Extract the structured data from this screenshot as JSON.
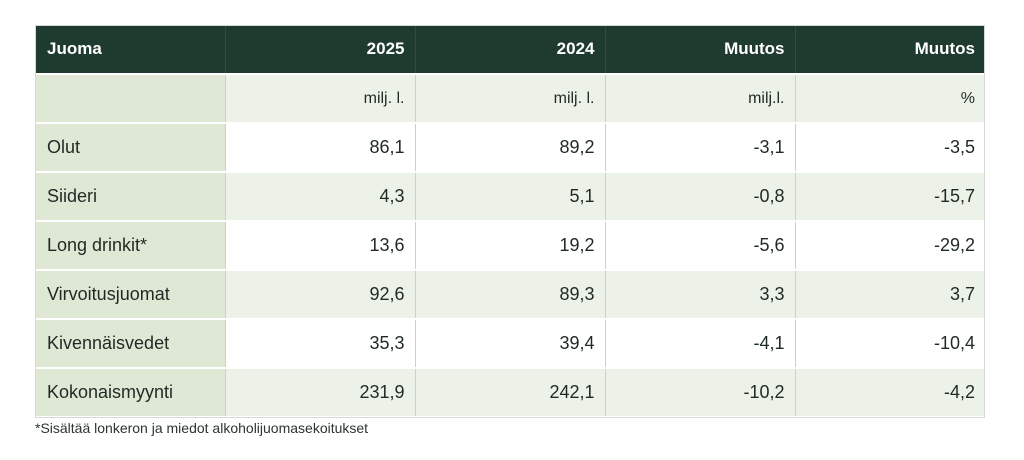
{
  "table": {
    "headers": [
      "Juoma",
      "2025",
      "2024",
      "Muutos",
      "Muutos"
    ],
    "units": [
      "",
      "milj. l.",
      "milj. l.",
      "milj.l.",
      "%"
    ],
    "rows": [
      {
        "drink": "Olut",
        "y2025": "86,1",
        "y2024": "89,2",
        "change": "-3,1",
        "change_pct": "-3,5"
      },
      {
        "drink": "Siideri",
        "y2025": "4,3",
        "y2024": "5,1",
        "change": "-0,8",
        "change_pct": "-15,7"
      },
      {
        "drink": "Long drinkit*",
        "y2025": "13,6",
        "y2024": "19,2",
        "change": "-5,6",
        "change_pct": "-29,2"
      },
      {
        "drink": "Virvoitusjuomat",
        "y2025": "92,6",
        "y2024": "89,3",
        "change": "3,3",
        "change_pct": "3,7"
      },
      {
        "drink": "Kivennäisvedet",
        "y2025": "35,3",
        "y2024": "39,4",
        "change": "-4,1",
        "change_pct": "-10,4"
      },
      {
        "drink": "Kokonaismyynti",
        "y2025": "231,9",
        "y2024": "242,1",
        "change": "-10,2",
        "change_pct": "-4,2"
      }
    ]
  },
  "footnote": "*Sisältää lonkeron ja miedot alkoholijuomasekoitukset",
  "colors": {
    "header_bg": "#1f3a2f",
    "first_col_bg": "#dfe7d5",
    "tint_row_bg": "#edf2e8"
  }
}
